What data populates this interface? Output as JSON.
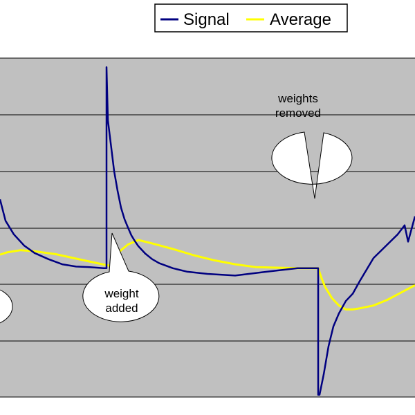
{
  "chart_data": {
    "type": "line",
    "title": "",
    "xlabel": "",
    "ylabel": "",
    "grid": true,
    "legend_position": "top-right",
    "colors": {
      "plot_background": "#c0c0c0",
      "gridlines": "#000000",
      "signal": "#000080",
      "average": "#ffff00"
    },
    "ylim": [
      -1.9,
      4.1
    ],
    "xlim": [
      0,
      600
    ],
    "series": [
      {
        "name": "Signal",
        "color": "#000080",
        "x": [
          0,
          8,
          20,
          35,
          50,
          70,
          90,
          110,
          130,
          150,
          154,
          154,
          156,
          160,
          165,
          170,
          175,
          180,
          185,
          190,
          195,
          200,
          210,
          220,
          230,
          250,
          270,
          300,
          340,
          380,
          430,
          460,
          460,
          462,
          468,
          475,
          482,
          490,
          500,
          510,
          520,
          540,
          560,
          575,
          585,
          590,
          600
        ],
        "y": [
          1.6,
          1.22,
          0.98,
          0.78,
          0.65,
          0.54,
          0.45,
          0.41,
          0.4,
          0.38,
          0.38,
          3.94,
          3.0,
          2.6,
          2.1,
          1.75,
          1.45,
          1.25,
          1.1,
          0.96,
          0.86,
          0.77,
          0.64,
          0.54,
          0.47,
          0.38,
          0.32,
          0.28,
          0.25,
          0.31,
          0.38,
          0.38,
          -1.86,
          -1.86,
          -1.5,
          -1.0,
          -0.65,
          -0.42,
          -0.2,
          -0.07,
          0.15,
          0.56,
          0.8,
          0.98,
          1.14,
          0.85,
          1.3
        ]
      },
      {
        "name": "Average",
        "color": "#ffff00",
        "x": [
          0,
          10,
          30,
          50,
          80,
          110,
          140,
          160,
          165,
          175,
          185,
          200,
          220,
          250,
          280,
          310,
          340,
          370,
          400,
          430,
          460,
          465,
          470,
          480,
          490,
          500,
          510,
          520,
          540,
          560,
          580,
          600
        ],
        "y": [
          0.62,
          0.66,
          0.7,
          0.68,
          0.63,
          0.55,
          0.47,
          0.42,
          0.55,
          0.7,
          0.8,
          0.88,
          0.82,
          0.72,
          0.61,
          0.52,
          0.45,
          0.4,
          0.39,
          0.38,
          0.38,
          0.2,
          0.05,
          -0.15,
          -0.28,
          -0.35,
          -0.35,
          -0.33,
          -0.28,
          -0.18,
          -0.05,
          0.08
        ]
      }
    ],
    "annotations": [
      {
        "lines": [
          "weights",
          "removed"
        ]
      },
      {
        "lines": [
          "weight",
          "added"
        ]
      }
    ]
  }
}
